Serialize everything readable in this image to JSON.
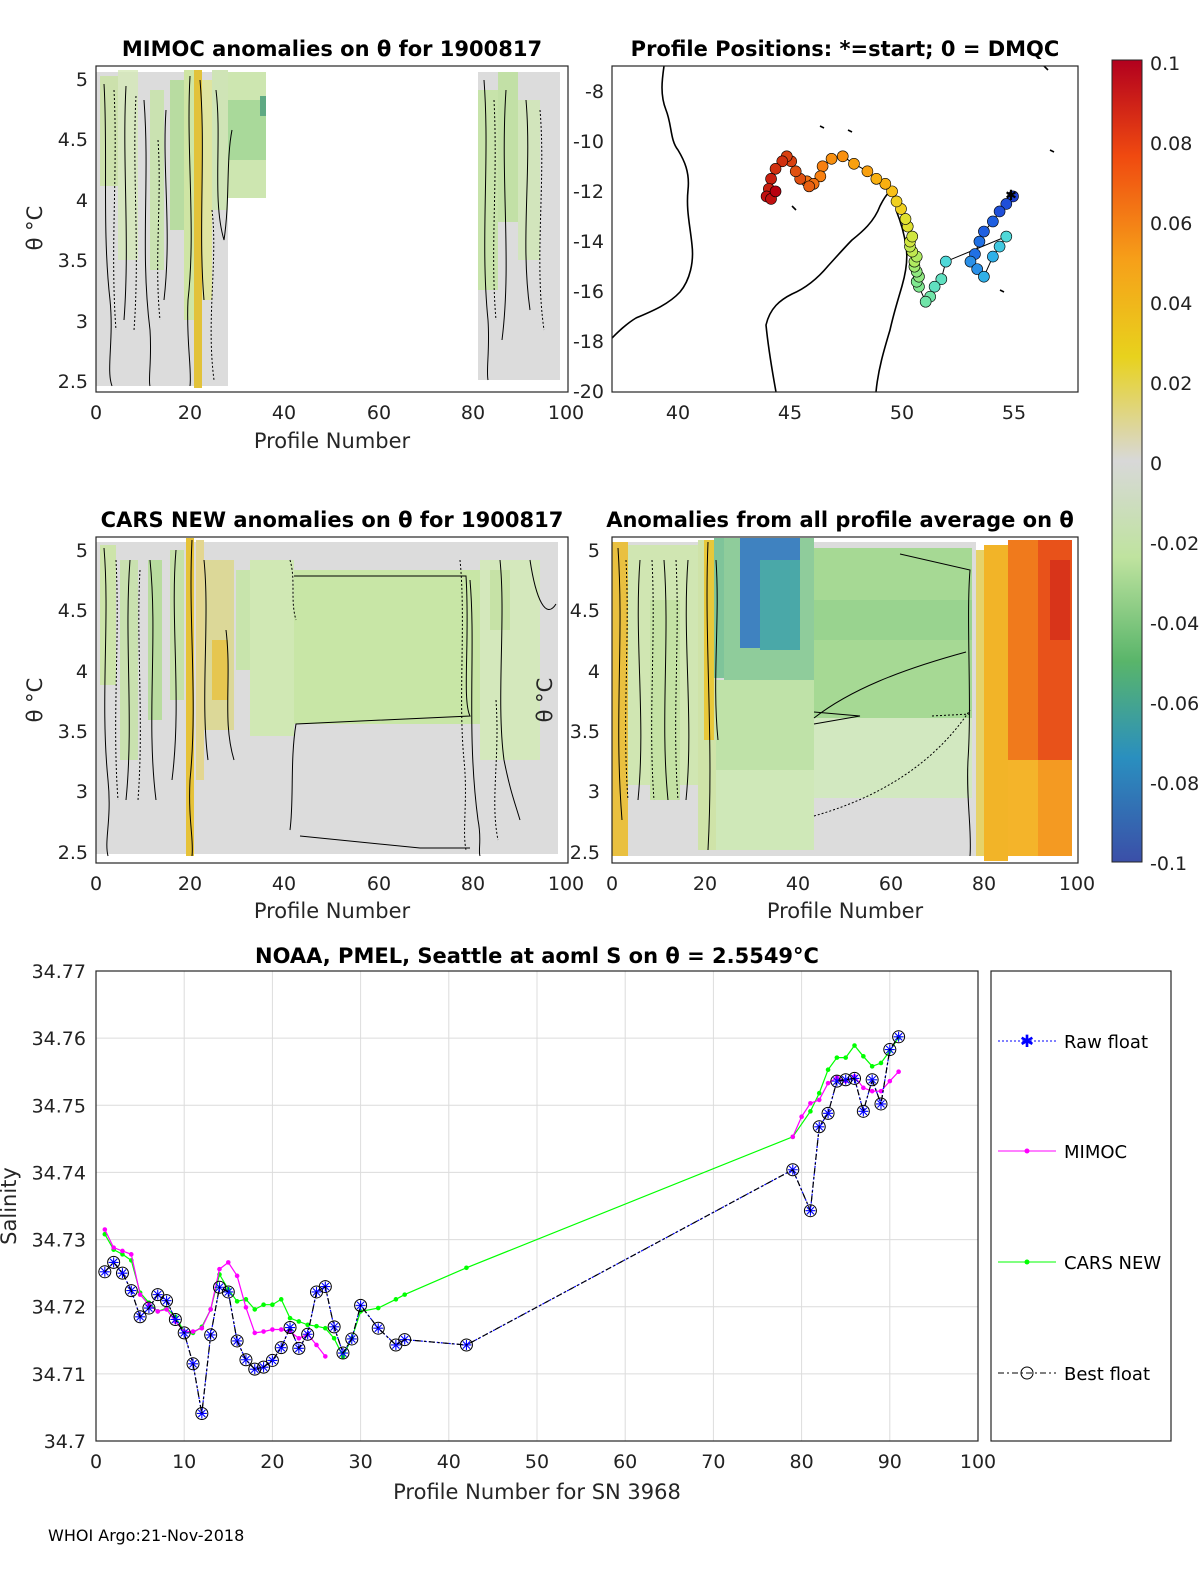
{
  "footer": "WHOI Argo:21-Nov-2018",
  "colorbar": {
    "ticks": [
      "0.1",
      "0.08",
      "0.06",
      "0.04",
      "0.02",
      "0",
      "-0.02",
      "-0.04",
      "-0.06",
      "-0.08",
      "-0.1"
    ]
  },
  "panels": {
    "mimoc": {
      "title": "MIMOC anomalies on θ  for 1900817",
      "xlabel": "Profile Number",
      "ylabel": "θ °C",
      "xticks": [
        "0",
        "20",
        "40",
        "60",
        "80",
        "100"
      ],
      "yticks": [
        "5",
        "4.5",
        "4",
        "3.5",
        "3",
        "2.5"
      ]
    },
    "map": {
      "title": "Profile Positions: *=start; 0 = DMQC",
      "xticks": [
        "40",
        "45",
        "50",
        "55"
      ],
      "yticks": [
        "-8",
        "-10",
        "-12",
        "-14",
        "-16",
        "-18",
        "-20"
      ]
    },
    "cars": {
      "title": "CARS NEW anomalies on θ for 1900817",
      "xlabel": "Profile Number",
      "ylabel": "θ °C",
      "xticks": [
        "0",
        "20",
        "40",
        "60",
        "80",
        "100"
      ],
      "yticks": [
        "5",
        "4.5",
        "4",
        "3.5",
        "3",
        "2.5"
      ]
    },
    "avg": {
      "title": "Anomalies from all profile average on θ",
      "xlabel": "Profile Number",
      "ylabel": "θ °C",
      "xticks": [
        "0",
        "20",
        "40",
        "60",
        "80",
        "100"
      ],
      "yticks": [
        "5",
        "4.5",
        "4",
        "3.5",
        "3",
        "2.5"
      ]
    }
  },
  "chart_data": {
    "type": "line",
    "title": "NOAA, PMEL, Seattle at aoml S on θ = 2.5549°C",
    "xlabel": "Profile Number for SN 3968",
    "ylabel": "Salinity",
    "xlim": [
      0,
      100
    ],
    "ylim": [
      34.7,
      34.77
    ],
    "xticks": [
      "0",
      "10",
      "20",
      "30",
      "40",
      "50",
      "60",
      "70",
      "80",
      "90",
      "100"
    ],
    "yticks": [
      "34.77",
      "34.76",
      "34.75",
      "34.74",
      "34.73",
      "34.72",
      "34.71",
      "34.7"
    ],
    "grid": true,
    "legend_position": "right",
    "series": [
      {
        "name": "Raw float",
        "color": "#0000ff",
        "x": [
          1,
          2,
          3,
          4,
          5,
          6,
          7,
          8,
          9,
          10,
          11,
          12,
          13,
          14,
          15,
          16,
          17,
          18,
          19,
          20,
          21,
          22,
          23,
          24,
          25,
          26,
          27,
          28,
          29,
          30,
          32,
          34,
          35,
          42,
          79,
          81,
          82,
          83,
          84,
          85,
          86,
          87,
          88,
          89,
          90,
          91
        ],
        "y": [
          34.7252,
          34.7266,
          34.725,
          34.7224,
          34.7185,
          34.7198,
          34.7218,
          34.7209,
          34.7181,
          34.7161,
          34.7115,
          34.7041,
          34.7158,
          34.7229,
          34.7222,
          34.7149,
          34.7121,
          34.7107,
          34.711,
          34.712,
          34.7139,
          34.7169,
          34.7138,
          34.7159,
          34.7222,
          34.723,
          34.717,
          34.7131,
          34.7152,
          34.7202,
          34.7168,
          34.7143,
          34.7151,
          34.7143,
          34.7404,
          34.7343,
          34.7468,
          34.7488,
          34.7536,
          34.7538,
          34.754,
          34.7491,
          34.7538,
          34.7502,
          34.7583,
          34.7602
        ]
      },
      {
        "name": "MIMOC",
        "color": "#ff00ff",
        "x": [
          1,
          2,
          3,
          4,
          5,
          6,
          7,
          8,
          9,
          10,
          11,
          12,
          13,
          14,
          15,
          16,
          17,
          18,
          19,
          20,
          21,
          22,
          23,
          24,
          25,
          26,
          27,
          79,
          80,
          81,
          82,
          83,
          84,
          85,
          86,
          87,
          88,
          89,
          90,
          91
        ],
        "y": [
          34.7315,
          34.7288,
          34.7283,
          34.7278,
          34.7218,
          34.7203,
          34.7193,
          34.7196,
          34.7178,
          34.7163,
          34.7163,
          34.7168,
          34.7196,
          34.7256,
          34.7266,
          34.7246,
          34.7199,
          34.7161,
          34.7163,
          34.7166,
          34.7166,
          34.7163,
          34.7153,
          34.7159,
          34.7143,
          34.7126,
          null,
          34.7453,
          34.7483,
          34.7503,
          34.7508,
          34.7533,
          34.7541,
          34.7536,
          34.7543,
          34.7526,
          34.7521,
          34.7521,
          34.7536,
          34.755
        ]
      },
      {
        "name": "CARS NEW",
        "color": "#00ff00",
        "x": [
          1,
          2,
          3,
          4,
          5,
          6,
          7,
          8,
          9,
          10,
          11,
          12,
          13,
          14,
          15,
          16,
          17,
          18,
          19,
          20,
          21,
          22,
          23,
          24,
          25,
          26,
          27,
          28,
          29,
          30,
          32,
          34,
          35,
          42,
          79,
          81,
          82,
          83,
          84,
          85,
          86,
          87,
          88,
          89,
          90,
          91
        ],
        "y": [
          34.7308,
          34.7285,
          34.7278,
          34.7269,
          34.7221,
          34.7206,
          34.7193,
          34.7198,
          34.7185,
          34.7163,
          34.7161,
          34.717,
          34.7196,
          34.7248,
          34.7226,
          34.7208,
          34.7211,
          34.7196,
          34.7203,
          34.7203,
          34.7211,
          34.7183,
          34.7178,
          34.7173,
          34.7171,
          34.7168,
          34.7153,
          34.7126,
          34.7153,
          34.7193,
          34.7198,
          34.7211,
          34.7218,
          34.7258,
          34.7453,
          34.7491,
          34.7518,
          34.7553,
          34.7571,
          34.7571,
          34.7589,
          34.7573,
          34.7558,
          34.7563,
          34.7581,
          34.7601
        ]
      },
      {
        "name": "Best float",
        "color": "#000000",
        "x": [
          1,
          2,
          3,
          4,
          5,
          6,
          7,
          8,
          9,
          10,
          11,
          12,
          13,
          14,
          15,
          16,
          17,
          18,
          19,
          20,
          21,
          22,
          23,
          24,
          25,
          26,
          27,
          28,
          29,
          30,
          32,
          34,
          35,
          42,
          79,
          81,
          82,
          83,
          84,
          85,
          86,
          87,
          88,
          89,
          90,
          91
        ],
        "y": [
          34.7252,
          34.7266,
          34.725,
          34.7224,
          34.7185,
          34.7198,
          34.7218,
          34.7209,
          34.7181,
          34.7161,
          34.7115,
          34.7041,
          34.7158,
          34.7229,
          34.7222,
          34.7149,
          34.7121,
          34.7107,
          34.711,
          34.712,
          34.7139,
          34.7169,
          34.7138,
          34.7159,
          34.7222,
          34.723,
          34.717,
          34.7131,
          34.7152,
          34.7202,
          34.7168,
          34.7143,
          34.7151,
          34.7143,
          34.7404,
          34.7343,
          34.7468,
          34.7488,
          34.7536,
          34.7538,
          34.754,
          34.7491,
          34.7538,
          34.7502,
          34.7583,
          34.7602
        ]
      }
    ],
    "map_positions": {
      "lon": [
        54.9,
        54.6,
        54.3,
        54.0,
        53.6,
        53.4,
        53.2,
        53.0,
        53.3,
        53.6,
        54.0,
        54.3,
        54.6,
        51.9,
        51.7,
        51.4,
        51.2,
        51.0,
        50.7,
        50.6,
        50.7,
        50.6,
        50.5,
        50.5,
        50.6,
        50.4,
        50.3,
        50.3,
        50.4,
        50.2,
        50.1,
        49.9,
        49.7,
        49.5,
        49.2,
        48.8,
        48.4,
        47.8,
        47.3,
        46.8,
        46.4,
        46.3,
        45.7,
        46.0,
        45.8,
        45.4,
        45.2,
        45.0,
        44.8,
        44.6,
        44.3,
        44.1,
        44.0,
        43.9,
        44.1,
        44.3
      ],
      "lat": [
        -12.2,
        -12.5,
        -12.8,
        -13.2,
        -13.6,
        -14.0,
        -14.5,
        -14.8,
        -15.1,
        -15.4,
        -14.6,
        -14.2,
        -13.8,
        -14.8,
        -15.5,
        -15.8,
        -16.2,
        -16.4,
        -15.8,
        -15.6,
        -15.4,
        -15.2,
        -15.0,
        -14.8,
        -14.6,
        -14.4,
        -14.2,
        -14.0,
        -13.8,
        -13.4,
        -13.1,
        -12.7,
        -12.4,
        -12.0,
        -11.7,
        -11.5,
        -11.2,
        -10.9,
        -10.6,
        -10.7,
        -11.0,
        -11.4,
        -11.6,
        -11.7,
        -11.8,
        -11.5,
        -11.2,
        -10.8,
        -10.6,
        -10.8,
        -11.1,
        -11.5,
        -11.9,
        -12.2,
        -12.3,
        -12.0
      ]
    }
  }
}
